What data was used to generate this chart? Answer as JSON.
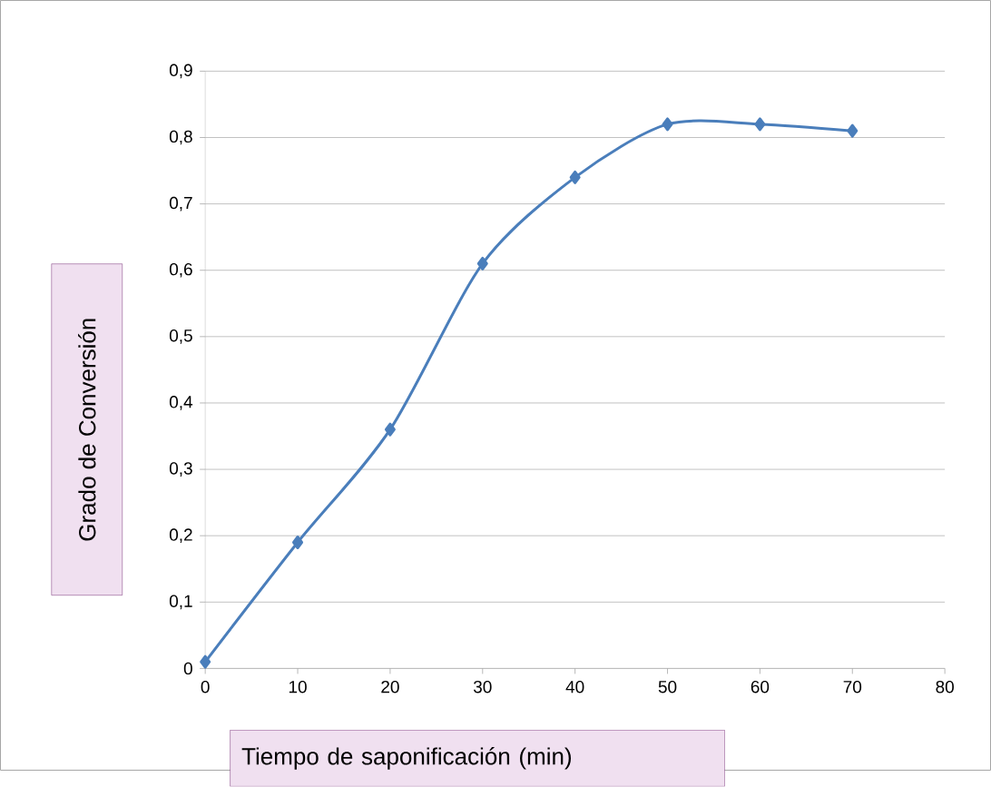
{
  "chart_data": {
    "type": "line",
    "xlabel": "Tiempo de saponificación (min)",
    "ylabel": "Grado de Conversión",
    "x": [
      0,
      10,
      20,
      30,
      40,
      50,
      60,
      70
    ],
    "series": [
      {
        "color": "#4a7ebb",
        "values": [
          0.01,
          0.19,
          0.36,
          0.61,
          0.74,
          0.82,
          0.82,
          0.81
        ]
      }
    ],
    "xlim": [
      0,
      80
    ],
    "ylim": [
      0,
      0.9
    ],
    "xticks": [
      0,
      10,
      20,
      30,
      40,
      50,
      60,
      70,
      80
    ],
    "yticks": [
      0,
      {
        "value": 0.1,
        "label": "0,1"
      },
      {
        "value": 0.2,
        "label": "0,2"
      },
      {
        "value": 0.3,
        "label": "0,3"
      },
      {
        "value": 0.4,
        "label": "0,4"
      },
      {
        "value": 0.5,
        "label": "0,5"
      },
      {
        "value": 0.6,
        "label": "0,6"
      },
      {
        "value": 0.7,
        "label": "0,7"
      },
      {
        "value": 0.8,
        "label": "0,8"
      },
      {
        "value": 0.9,
        "label": "0,9"
      }
    ],
    "grid": "y",
    "marker": "diamond",
    "line_style": "solid"
  }
}
